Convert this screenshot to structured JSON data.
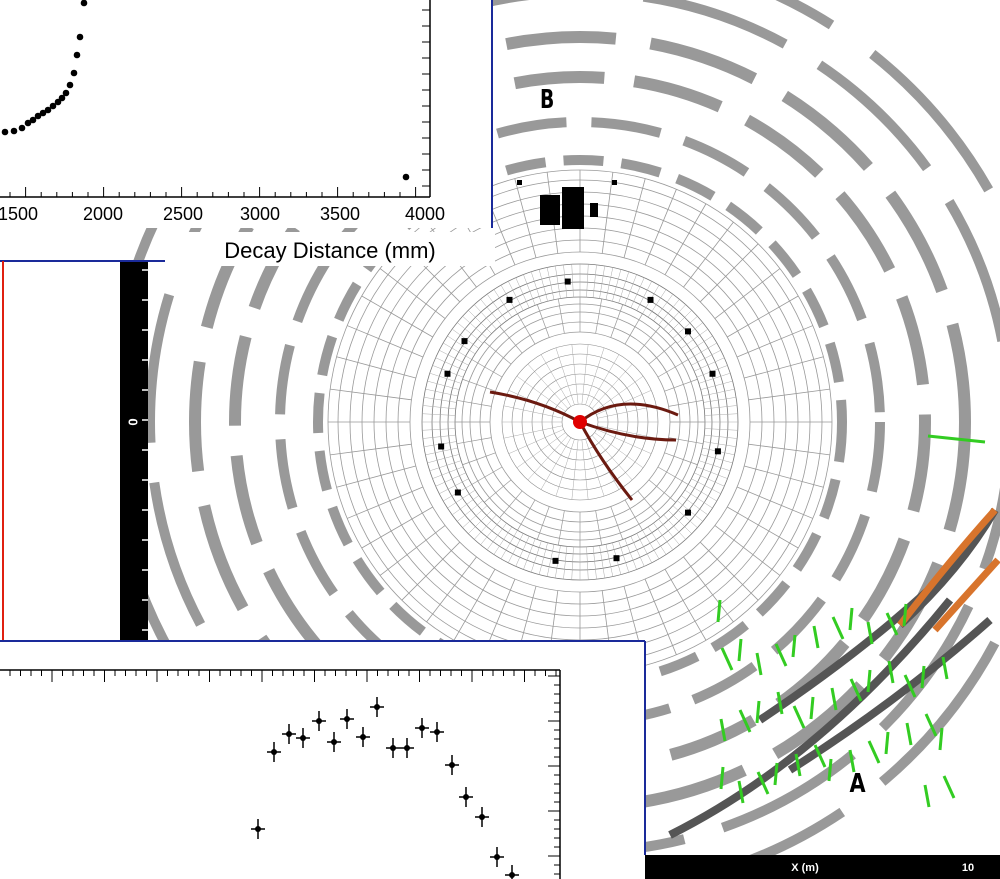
{
  "top_panel": {
    "x_tick_labels": [
      "1500",
      "2000",
      "2500",
      "3000",
      "3500",
      "4000"
    ],
    "axis_label": "Decay Distance (mm)"
  },
  "detector": {
    "labels": [
      "B",
      "A"
    ]
  },
  "side_panel": {
    "scale_label": "0"
  },
  "bottom_bar": {
    "axis_label": "X (m)",
    "tick_label": "10"
  }
}
